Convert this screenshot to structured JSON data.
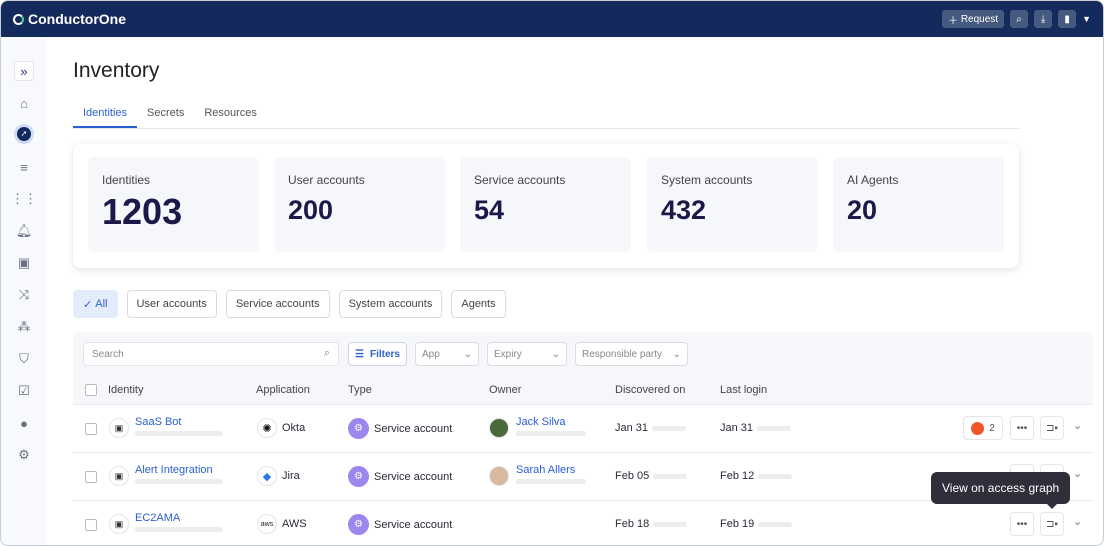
{
  "app": {
    "name": "ConductorOne",
    "request_label": "Request"
  },
  "sidebar": {
    "icons": [
      "expand-icon",
      "home-icon",
      "compass-icon",
      "tasks-icon",
      "apps-icon",
      "alert-icon",
      "directory-icon",
      "workflow-icon",
      "users-icon",
      "shield-search-icon",
      "form-check-icon",
      "person-icon",
      "gear-icon"
    ]
  },
  "page": {
    "title": "Inventory",
    "tabs": [
      {
        "label": "Identities",
        "active": true
      },
      {
        "label": "Secrets"
      },
      {
        "label": "Resources"
      }
    ]
  },
  "stats": [
    {
      "label": "Identities",
      "value": "1203"
    },
    {
      "label": "User accounts",
      "value": "200"
    },
    {
      "label": "Service accounts",
      "value": "54"
    },
    {
      "label": "System accounts",
      "value": "432"
    },
    {
      "label": "AI Agents",
      "value": "20"
    }
  ],
  "chips": [
    {
      "label": "All",
      "active": true
    },
    {
      "label": "User accounts"
    },
    {
      "label": "Service accounts"
    },
    {
      "label": "System accounts"
    },
    {
      "label": "Agents"
    }
  ],
  "toolbar": {
    "search_placeholder": "Search",
    "filters": "Filters",
    "app": "App",
    "expiry": "Expiry",
    "responsible": "Responsible party"
  },
  "table": {
    "headers": [
      "Identity",
      "Application",
      "Type",
      "Owner",
      "Discovered on",
      "Last login"
    ],
    "rows": [
      {
        "identity": "SaaS Bot",
        "app": "Okta",
        "type": "Service account",
        "owner": "Jack Silva",
        "discovered": "Jan 31",
        "last_login": "Jan 31",
        "alerts": "2"
      },
      {
        "identity": "Alert Integration",
        "app": "Jira",
        "type": "Service account",
        "owner": "Sarah Allers",
        "discovered": "Feb 05",
        "last_login": "Feb 12"
      },
      {
        "identity": "EC2AMA",
        "app": "AWS",
        "type": "Service account",
        "owner": "",
        "discovered": "Feb 18",
        "last_login": "Feb 19"
      }
    ]
  },
  "tooltip": "View on access graph",
  "colors": {
    "header": "#152a5c",
    "accent": "#2b5fd1",
    "type_badge": "#9d86f0",
    "alert": "#f0562a"
  }
}
